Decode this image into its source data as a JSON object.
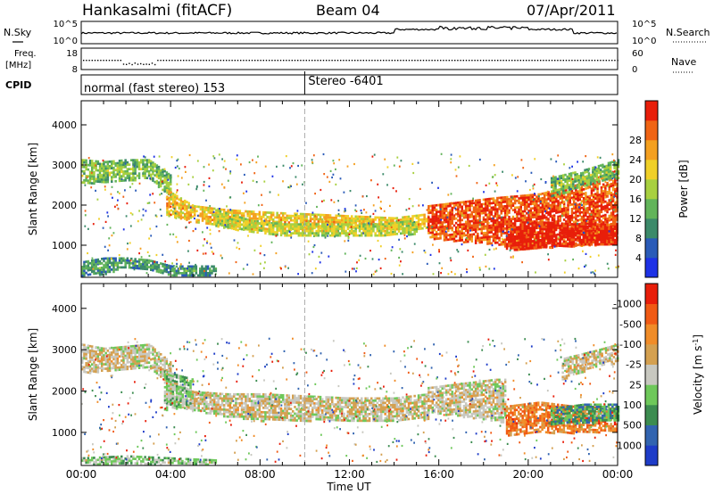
{
  "header": {
    "station": "Hankasalmi (fitACF)",
    "beam": "Beam 04",
    "date": "07/Apr/2011"
  },
  "noise_panel": {
    "left_label": "N.Sky",
    "right_label": "N.Search",
    "y_ticks_left": [
      "10^5",
      "10^0"
    ],
    "y_ticks_right": [
      "10^5",
      "10^0"
    ]
  },
  "freq_panel": {
    "label_top": "Freq.",
    "label_unit": "[MHz]",
    "y_ticks_left": [
      "18",
      "8"
    ],
    "right_label": "Nave",
    "y_ticks_right": [
      "60",
      "0"
    ]
  },
  "cpid_panel": {
    "label": "CPID",
    "mode_1": "normal (fast stereo) 153",
    "mode_2": "Stereo -6401",
    "mode_change_hour": 10.0
  },
  "chart_data": [
    {
      "type": "heatmap",
      "parameter": "Power",
      "ylabel": "Slant Range [km]",
      "y_ticks": [
        1000,
        2000,
        3000,
        4000
      ],
      "ylim": [
        200,
        4600
      ],
      "xlim": [
        0,
        24
      ],
      "colorbar": {
        "label": "Power [dB]",
        "ticks": [
          "4",
          "8",
          "12",
          "16",
          "20",
          "24",
          "28"
        ],
        "colors": [
          "#1e32e6",
          "#2a5bb8",
          "#3c8a6a",
          "#62b45a",
          "#a8d040",
          "#f0d028",
          "#f4a020",
          "#f06414",
          "#e81e0a"
        ]
      },
      "bands": [
        {
          "x": [
            0.0,
            1.0,
            2.0,
            3.0,
            4.0
          ],
          "lower": [
            2550,
            2580,
            2620,
            2680,
            2200
          ],
          "upper": [
            3150,
            3100,
            3150,
            3150,
            2750
          ],
          "level": 3
        },
        {
          "x": [
            3.8,
            5.0,
            6.5,
            8.0,
            10.0,
            12.0,
            14.0,
            15.5
          ],
          "lower": [
            1750,
            1600,
            1450,
            1380,
            1450,
            1420,
            1400,
            1450
          ],
          "upper": [
            2400,
            2000,
            1900,
            1850,
            1800,
            1750,
            1700,
            1800
          ],
          "level": 5
        },
        {
          "x": [
            6.0,
            7.5,
            9.0,
            10.5,
            12.0,
            13.5,
            15.0
          ],
          "lower": [
            1500,
            1350,
            1250,
            1250,
            1250,
            1250,
            1300
          ],
          "upper": [
            1900,
            1650,
            1550,
            1550,
            1550,
            1550,
            1650
          ],
          "level": 4
        },
        {
          "x": [
            15.5,
            17.0,
            18.5,
            19.5,
            20.5,
            22.0,
            24.0
          ],
          "lower": [
            1200,
            1100,
            1050,
            900,
            950,
            1000,
            1050
          ],
          "upper": [
            2000,
            2100,
            2200,
            2250,
            2300,
            2500,
            2900
          ],
          "level": 7
        },
        {
          "x": [
            19.0,
            20.5,
            22.0,
            24.0
          ],
          "lower": [
            900,
            950,
            1000,
            1050
          ],
          "upper": [
            1500,
            1600,
            1550,
            1550
          ],
          "level": 8
        },
        {
          "x": [
            21.0,
            22.5,
            24.0
          ],
          "lower": [
            2200,
            2500,
            2700
          ],
          "upper": [
            2700,
            2900,
            3150
          ],
          "level": 3
        },
        {
          "x": [
            0.0,
            1.0,
            2.0,
            3.0,
            4.0,
            6.0
          ],
          "lower": [
            250,
            300,
            450,
            400,
            250,
            250
          ],
          "upper": [
            600,
            700,
            700,
            650,
            500,
            500
          ],
          "level": 2
        }
      ]
    },
    {
      "type": "heatmap",
      "parameter": "Velocity",
      "ylabel": "Slant Range [km]",
      "y_ticks": [
        1000,
        2000,
        3000,
        4000
      ],
      "ylim": [
        200,
        4600
      ],
      "xlim": [
        0,
        24
      ],
      "x_ticks": [
        "00:00",
        "04:00",
        "08:00",
        "12:00",
        "16:00",
        "20:00",
        "00:00"
      ],
      "xlabel": "Time UT",
      "colorbar": {
        "label": "Velocity [m s-1]",
        "ticks": [
          "1000",
          "500",
          "100",
          "25",
          "-25",
          "-100",
          "-500",
          "-1000"
        ],
        "colors": [
          "#1e3cc8",
          "#3264b0",
          "#3c8c50",
          "#6ec85a",
          "#c8c8c0",
          "#d4a050",
          "#f08c28",
          "#f05a14",
          "#e81e0a"
        ]
      },
      "bands": [
        {
          "x": [
            0.0,
            1.0,
            2.0,
            3.0,
            4.0
          ],
          "lower": [
            2450,
            2500,
            2550,
            2600,
            2100
          ],
          "upper": [
            3150,
            3050,
            3100,
            3150,
            2700
          ],
          "level": 4
        },
        {
          "x": [
            3.8,
            5.0,
            6.5,
            8.0,
            10.0,
            12.0,
            14.0,
            15.5
          ],
          "lower": [
            1700,
            1550,
            1400,
            1300,
            1300,
            1300,
            1300,
            1350
          ],
          "upper": [
            2300,
            2000,
            1950,
            1950,
            1900,
            1850,
            1850,
            1950
          ],
          "level": 4
        },
        {
          "x": [
            3.7,
            4.3,
            5.0
          ],
          "lower": [
            1550,
            1600,
            1750
          ],
          "upper": [
            2500,
            2400,
            2300
          ],
          "level": 3
        },
        {
          "x": [
            15.5,
            17.0,
            18.5,
            19.0
          ],
          "lower": [
            1500,
            1400,
            1300,
            1250
          ],
          "upper": [
            2100,
            2200,
            2300,
            2300
          ],
          "level": 4
        },
        {
          "x": [
            19.0,
            20.5,
            22.0,
            24.0
          ],
          "lower": [
            950,
            1000,
            1000,
            1050
          ],
          "upper": [
            1650,
            1750,
            1650,
            1600
          ],
          "level": 6
        },
        {
          "x": [
            21.0,
            22.5,
            24.0
          ],
          "lower": [
            1200,
            1250,
            1300
          ],
          "upper": [
            1600,
            1700,
            1700
          ],
          "level": 2
        },
        {
          "x": [
            21.5,
            23.0,
            24.0
          ],
          "lower": [
            2300,
            2600,
            2700
          ],
          "upper": [
            2800,
            3000,
            3150
          ],
          "level": 4
        },
        {
          "x": [
            0.0,
            2.0,
            4.0,
            6.0
          ],
          "lower": [
            250,
            250,
            250,
            250
          ],
          "upper": [
            400,
            450,
            400,
            350
          ],
          "level": 3
        }
      ]
    }
  ]
}
